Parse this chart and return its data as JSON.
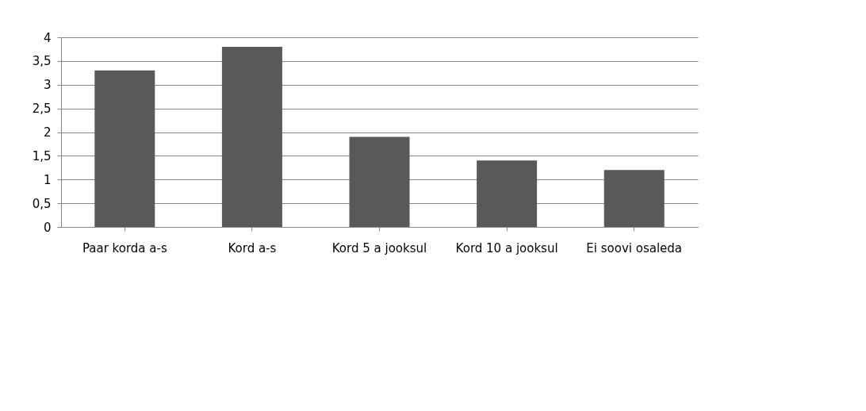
{
  "chart_data": {
    "type": "bar",
    "categories": [
      "Paar korda a-s",
      "Kord a-s",
      "Kord 5 a jooksul",
      "Kord 10 a jooksul",
      "Ei soovi osaleda"
    ],
    "values": [
      3.3,
      3.8,
      1.9,
      1.4,
      1.2
    ],
    "color": "#595959",
    "ylim": [
      0,
      4
    ],
    "yticks": [
      0,
      {
        "value": 0.5,
        "label": "0,5"
      },
      1,
      {
        "value": 1.5,
        "label": "1,5"
      },
      2,
      {
        "value": 2.5,
        "label": "2,5"
      },
      3,
      {
        "value": 3.5,
        "label": "3,5"
      },
      4
    ],
    "grid": "y"
  }
}
